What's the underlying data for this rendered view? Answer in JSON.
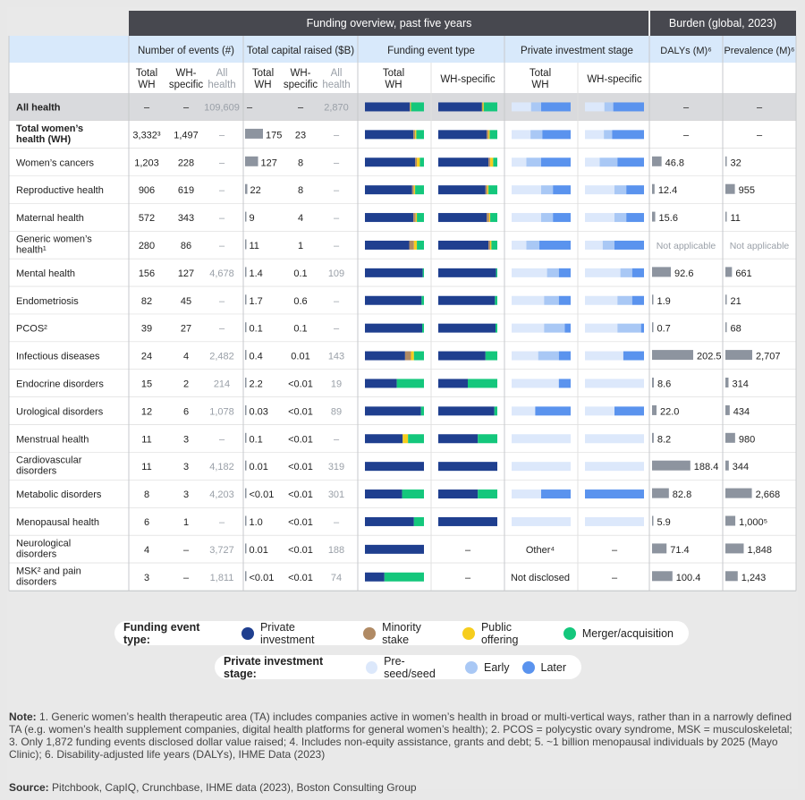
{
  "headers": {
    "group_funding": "Funding overview, past five years",
    "group_burden": "Burden (global, 2023)",
    "events": "Number of events (#)",
    "capital": "Total capital raised ($B)",
    "event_type": "Funding event type",
    "stage": "Private investment stage",
    "dalys": "DALYs (M)⁶",
    "prevalence": "Prevalence (M)⁶",
    "sub_total_wh": [
      "Total",
      "WH"
    ],
    "sub_wh_specific": [
      "WH-",
      "specific"
    ],
    "sub_all_health": [
      "All",
      "health"
    ],
    "sub_wh_specific_one": "WH-specific"
  },
  "colors": {
    "private_investment": "#1f3f8f",
    "minority_stake": "#b08a64",
    "public_offering": "#f6cd1d",
    "merger_acquisition": "#14c77c",
    "pre_seed": "#dce8fb",
    "early": "#a9c8f5",
    "later": "#5a93ee",
    "dark_header": "#47484f",
    "light_header": "#d8e9fb",
    "bar_gray": "#8d949f",
    "empty_stage": "#dce8fb"
  },
  "chart_data": {
    "type": "table",
    "rows": [
      {
        "name": "All health",
        "bold": true,
        "events_total": "–",
        "events_wh": "–",
        "events_all": "109,609",
        "cap_total": "–",
        "cap_wh": "–",
        "cap_all": "2,870",
        "cap_bar": 0,
        "ev_total": [
          0.76,
          0.01,
          0.01,
          0.22
        ],
        "ev_wh": [
          0.74,
          0.01,
          0.02,
          0.23
        ],
        "st_total": [
          0.33,
          0.17,
          0.5
        ],
        "st_wh": [
          0.33,
          0.15,
          0.52
        ],
        "dalys": "–",
        "dalys_bar": 0,
        "prev": "–",
        "prev_bar": 0
      },
      {
        "name": "Total women’s health (WH)",
        "bold": true,
        "events_total": "3,332³",
        "events_wh": "1,497",
        "events_all": "–",
        "cap_total": "175",
        "cap_wh": "23",
        "cap_all": "–",
        "cap_bar": 175,
        "ev_total": [
          0.82,
          0.03,
          0.02,
          0.13
        ],
        "ev_wh": [
          0.82,
          0.03,
          0.02,
          0.13
        ],
        "st_total": [
          0.32,
          0.2,
          0.48
        ],
        "st_wh": [
          0.32,
          0.14,
          0.54
        ],
        "dalys": "–",
        "dalys_bar": 0,
        "prev": "–",
        "prev_bar": 0
      },
      {
        "name": "Women’s cancers",
        "events_total": "1,203",
        "events_wh": "228",
        "events_all": "–",
        "cap_total": "127",
        "cap_wh": "8",
        "cap_all": "–",
        "cap_bar": 127,
        "ev_total": [
          0.85,
          0.03,
          0.05,
          0.07
        ],
        "ev_wh": [
          0.85,
          0.03,
          0.05,
          0.07
        ],
        "st_total": [
          0.25,
          0.25,
          0.5
        ],
        "st_wh": [
          0.25,
          0.3,
          0.45
        ],
        "dalys": "46.8",
        "dalys_bar": 46.8,
        "prev": "32",
        "prev_bar": 32
      },
      {
        "name": "Reproductive health",
        "events_total": "906",
        "events_wh": "619",
        "events_all": "–",
        "cap_total": "22",
        "cap_wh": "8",
        "cap_all": "–",
        "cap_bar": 22,
        "ev_total": [
          0.8,
          0.03,
          0.02,
          0.15
        ],
        "ev_wh": [
          0.8,
          0.03,
          0.02,
          0.15
        ],
        "st_total": [
          0.5,
          0.2,
          0.3
        ],
        "st_wh": [
          0.5,
          0.2,
          0.3
        ],
        "dalys": "12.4",
        "dalys_bar": 12.4,
        "prev": "955",
        "prev_bar": 955
      },
      {
        "name": "Maternal health",
        "events_total": "572",
        "events_wh": "343",
        "events_all": "–",
        "cap_total": "9",
        "cap_wh": "4",
        "cap_all": "–",
        "cap_bar": 9,
        "ev_total": [
          0.82,
          0.04,
          0.02,
          0.12
        ],
        "ev_wh": [
          0.82,
          0.04,
          0.02,
          0.12
        ],
        "st_total": [
          0.5,
          0.2,
          0.3
        ],
        "st_wh": [
          0.5,
          0.2,
          0.3
        ],
        "dalys": "15.6",
        "dalys_bar": 15.6,
        "prev": "11",
        "prev_bar": 11
      },
      {
        "name": "Generic women’s health¹",
        "events_total": "280",
        "events_wh": "86",
        "events_all": "–",
        "cap_total": "11",
        "cap_wh": "1",
        "cap_all": "–",
        "cap_bar": 11,
        "ev_total": [
          0.75,
          0.08,
          0.05,
          0.12
        ],
        "ev_wh": [
          0.85,
          0.03,
          0.02,
          0.1
        ],
        "st_total": [
          0.25,
          0.22,
          0.53
        ],
        "st_wh": [
          0.3,
          0.2,
          0.5
        ],
        "dalys": "Not applicable",
        "dalys_bar": 0,
        "prev": "Not applicable",
        "prev_bar": 0
      },
      {
        "name": "Mental health",
        "events_total": "156",
        "events_wh": "127",
        "events_all": "4,678",
        "cap_total": "1.4",
        "cap_wh": "0.1",
        "cap_all": "109",
        "cap_bar": 1.4,
        "ev_total": [
          0.98,
          0,
          0,
          0.02
        ],
        "ev_wh": [
          0.98,
          0,
          0,
          0.02
        ],
        "st_total": [
          0.6,
          0.2,
          0.2
        ],
        "st_wh": [
          0.6,
          0.2,
          0.2
        ],
        "dalys": "92.6",
        "dalys_bar": 92.6,
        "prev": "661",
        "prev_bar": 661
      },
      {
        "name": "Endometriosis",
        "events_total": "82",
        "events_wh": "45",
        "events_all": "–",
        "cap_total": "1.7",
        "cap_wh": "0.6",
        "cap_all": "–",
        "cap_bar": 1.7,
        "ev_total": [
          0.96,
          0,
          0,
          0.04
        ],
        "ev_wh": [
          0.96,
          0,
          0,
          0.04
        ],
        "st_total": [
          0.55,
          0.25,
          0.2
        ],
        "st_wh": [
          0.55,
          0.25,
          0.2
        ],
        "dalys": "1.9",
        "dalys_bar": 1.9,
        "prev": "21",
        "prev_bar": 21
      },
      {
        "name": "PCOS²",
        "events_total": "39",
        "events_wh": "27",
        "events_all": "–",
        "cap_total": "0.1",
        "cap_wh": "0.1",
        "cap_all": "–",
        "cap_bar": 0.1,
        "ev_total": [
          0.97,
          0,
          0,
          0.03
        ],
        "ev_wh": [
          0.97,
          0,
          0,
          0.03
        ],
        "st_total": [
          0.55,
          0.35,
          0.1
        ],
        "st_wh": [
          0.55,
          0.4,
          0.05
        ],
        "dalys": "0.7",
        "dalys_bar": 0.7,
        "prev": "68",
        "prev_bar": 68
      },
      {
        "name": "Infectious diseases",
        "events_total": "24",
        "events_wh": "4",
        "events_all": "2,482",
        "cap_total": "0.4",
        "cap_wh": "0.01",
        "cap_all": "143",
        "cap_bar": 0.4,
        "ev_total": [
          0.68,
          0.1,
          0.05,
          0.17
        ],
        "ev_wh": [
          0.8,
          0,
          0,
          0.2
        ],
        "st_total": [
          0.45,
          0.35,
          0.2
        ],
        "st_wh": [
          0.65,
          0,
          0.35
        ],
        "dalys": "202.5",
        "dalys_bar": 202.5,
        "prev": "2,707",
        "prev_bar": 2707
      },
      {
        "name": "Endocrine disorders",
        "events_total": "15",
        "events_wh": "2",
        "events_all": "214",
        "cap_total": "2.2",
        "cap_wh": "<0.01",
        "cap_all": "19",
        "cap_bar": 2.2,
        "ev_total": [
          0.54,
          0,
          0,
          0.46
        ],
        "ev_wh": [
          0.5,
          0,
          0,
          0.5
        ],
        "st_total": [
          0.8,
          0,
          0.2
        ],
        "st_wh": [
          1,
          0,
          0
        ],
        "dalys": "8.6",
        "dalys_bar": 8.6,
        "prev": "314",
        "prev_bar": 314
      },
      {
        "name": "Urological disorders",
        "events_total": "12",
        "events_wh": "6",
        "events_all": "1,078",
        "cap_total": "0.03",
        "cap_wh": "<0.01",
        "cap_all": "89",
        "cap_bar": 0.03,
        "ev_total": [
          0.95,
          0,
          0,
          0.05
        ],
        "ev_wh": [
          0.95,
          0,
          0,
          0.05
        ],
        "st_total": [
          0.4,
          0,
          0.6
        ],
        "st_wh": [
          0.5,
          0,
          0.5
        ],
        "dalys": "22.0",
        "dalys_bar": 22.0,
        "prev": "434",
        "prev_bar": 434
      },
      {
        "name": "Menstrual health",
        "events_total": "11",
        "events_wh": "3",
        "events_all": "–",
        "cap_total": "0.1",
        "cap_wh": "<0.01",
        "cap_all": "–",
        "cap_bar": 0.1,
        "ev_total": [
          0.64,
          0,
          0.09,
          0.27
        ],
        "ev_wh": [
          0.67,
          0,
          0,
          0.33
        ],
        "st_total": [
          1,
          0,
          0
        ],
        "st_wh": [
          1,
          0,
          0
        ],
        "dalys": "8.2",
        "dalys_bar": 8.2,
        "prev": "980",
        "prev_bar": 980
      },
      {
        "name": "Cardiovascular disorders",
        "events_total": "11",
        "events_wh": "3",
        "events_all": "4,182",
        "cap_total": "0.01",
        "cap_wh": "<0.01",
        "cap_all": "319",
        "cap_bar": 0.01,
        "ev_total": [
          1,
          0,
          0,
          0
        ],
        "ev_wh": [
          1,
          0,
          0,
          0
        ],
        "st_total": [
          1,
          0,
          0
        ],
        "st_wh": [
          1,
          0,
          0
        ],
        "dalys": "188.4",
        "dalys_bar": 188.4,
        "prev": "344",
        "prev_bar": 344
      },
      {
        "name": "Metabolic disorders",
        "events_total": "8",
        "events_wh": "3",
        "events_all": "4,203",
        "cap_total": "<0.01",
        "cap_wh": "<0.01",
        "cap_all": "301",
        "cap_bar": 0.005,
        "ev_total": [
          0.63,
          0,
          0,
          0.37
        ],
        "ev_wh": [
          0.67,
          0,
          0,
          0.33
        ],
        "st_total": [
          0.5,
          0,
          0.5
        ],
        "st_wh": [
          0,
          0,
          1
        ],
        "dalys": "82.8",
        "dalys_bar": 82.8,
        "prev": "2,668",
        "prev_bar": 2668
      },
      {
        "name": "Menopausal health",
        "events_total": "6",
        "events_wh": "1",
        "events_all": "–",
        "cap_total": "1.0",
        "cap_wh": "<0.01",
        "cap_all": "–",
        "cap_bar": 1.0,
        "ev_total": [
          0.83,
          0,
          0,
          0.17
        ],
        "ev_wh": [
          1,
          0,
          0,
          0
        ],
        "st_total": [
          1,
          0,
          0
        ],
        "st_wh": [
          1,
          0,
          0
        ],
        "dalys": "5.9",
        "dalys_bar": 5.9,
        "prev": "1,000⁵",
        "prev_bar": 1000
      },
      {
        "name": "Neurological disorders",
        "events_total": "4",
        "events_wh": "–",
        "events_all": "3,727",
        "cap_total": "0.01",
        "cap_wh": "<0.01",
        "cap_all": "188",
        "cap_bar": 0.01,
        "ev_total": [
          1,
          0,
          0,
          0
        ],
        "ev_wh": null,
        "st_total": null,
        "st_total_text": "Other⁴",
        "st_wh": null,
        "dalys": "71.4",
        "dalys_bar": 71.4,
        "prev": "1,848",
        "prev_bar": 1848
      },
      {
        "name": "MSK² and pain disorders",
        "events_total": "3",
        "events_wh": "–",
        "events_all": "1,811",
        "cap_total": "<0.01",
        "cap_wh": "<0.01",
        "cap_all": "74",
        "cap_bar": 0.005,
        "ev_total": [
          0.33,
          0,
          0,
          0.67
        ],
        "ev_wh": null,
        "st_total": null,
        "st_total_text": "Not disclosed",
        "st_wh": null,
        "dalys": "100.4",
        "dalys_bar": 100.4,
        "prev": "1,243",
        "prev_bar": 1243
      }
    ],
    "empty_cell": "–"
  },
  "legend": {
    "event_title": "Funding event type:",
    "event_items": [
      "Private investment",
      "Minority stake",
      "Public offering",
      "Merger/acquisition"
    ],
    "stage_title": "Private investment stage:",
    "stage_items": [
      "Pre-seed/seed",
      "Early",
      "Later"
    ]
  },
  "note": {
    "label": "Note:",
    "text": "1. Generic women’s health therapeutic area (TA) includes companies active in women’s health in broad or multi-vertical ways, rather than in a narrowly defined TA (e.g. women’s health supplement companies, digital health platforms for general women’s health); 2. PCOS = polycystic ovary syndrome, MSK = musculoskeletal; 3. Only 1,872 funding events disclosed dollar value raised; 4. Includes non-equity assistance, grants and debt; 5. ~1 billion menopausal individuals by 2025 (Mayo Clinic); 6. Disability-adjusted life years (DALYs), IHME Data (2023)"
  },
  "source": {
    "label": "Source:",
    "text": "Pitchbook, CapIQ, Crunchbase, IHME data (2023), Boston Consulting Group"
  }
}
